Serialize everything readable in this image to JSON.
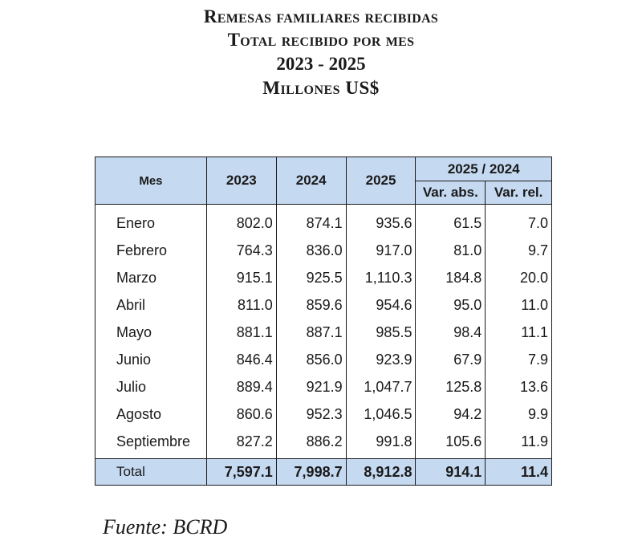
{
  "title": {
    "line1": "Remesas familiares recibidas",
    "line2": "Total recibido por mes",
    "line3": "2023 - 2025",
    "line4": "Millones US$"
  },
  "table": {
    "headers": {
      "mes": "Mes",
      "y2023": "2023",
      "y2024": "2024",
      "y2025": "2025",
      "group": "2025 / 2024",
      "var_abs": "Var. abs.",
      "var_rel": "Var. rel."
    },
    "rows": [
      {
        "mes": "Enero",
        "y2023": "802.0",
        "y2024": "874.1",
        "y2025": "935.6",
        "var_abs": "61.5",
        "var_rel": "7.0"
      },
      {
        "mes": "Febrero",
        "y2023": "764.3",
        "y2024": "836.0",
        "y2025": "917.0",
        "var_abs": "81.0",
        "var_rel": "9.7"
      },
      {
        "mes": "Marzo",
        "y2023": "915.1",
        "y2024": "925.5",
        "y2025": "1,110.3",
        "var_abs": "184.8",
        "var_rel": "20.0"
      },
      {
        "mes": "Abril",
        "y2023": "811.0",
        "y2024": "859.6",
        "y2025": "954.6",
        "var_abs": "95.0",
        "var_rel": "11.0"
      },
      {
        "mes": "Mayo",
        "y2023": "881.1",
        "y2024": "887.1",
        "y2025": "985.5",
        "var_abs": "98.4",
        "var_rel": "11.1"
      },
      {
        "mes": "Junio",
        "y2023": "846.4",
        "y2024": "856.0",
        "y2025": "923.9",
        "var_abs": "67.9",
        "var_rel": "7.9"
      },
      {
        "mes": "Julio",
        "y2023": "889.4",
        "y2024": "921.9",
        "y2025": "1,047.7",
        "var_abs": "125.8",
        "var_rel": "13.6"
      },
      {
        "mes": "Agosto",
        "y2023": "860.6",
        "y2024": "952.3",
        "y2025": "1,046.5",
        "var_abs": "94.2",
        "var_rel": "9.9"
      },
      {
        "mes": "Septiembre",
        "y2023": "827.2",
        "y2024": "886.2",
        "y2025": "991.8",
        "var_abs": "105.6",
        "var_rel": "11.9"
      }
    ],
    "total": {
      "mes": "Total",
      "y2023": "7,597.1",
      "y2024": "7,998.7",
      "y2025": "8,912.8",
      "var_abs": "914.1",
      "var_rel": "11.4"
    }
  },
  "source": "Fuente: BCRD",
  "colors": {
    "header_fill": "#c5d9f1",
    "border": "#1a1a1a"
  }
}
